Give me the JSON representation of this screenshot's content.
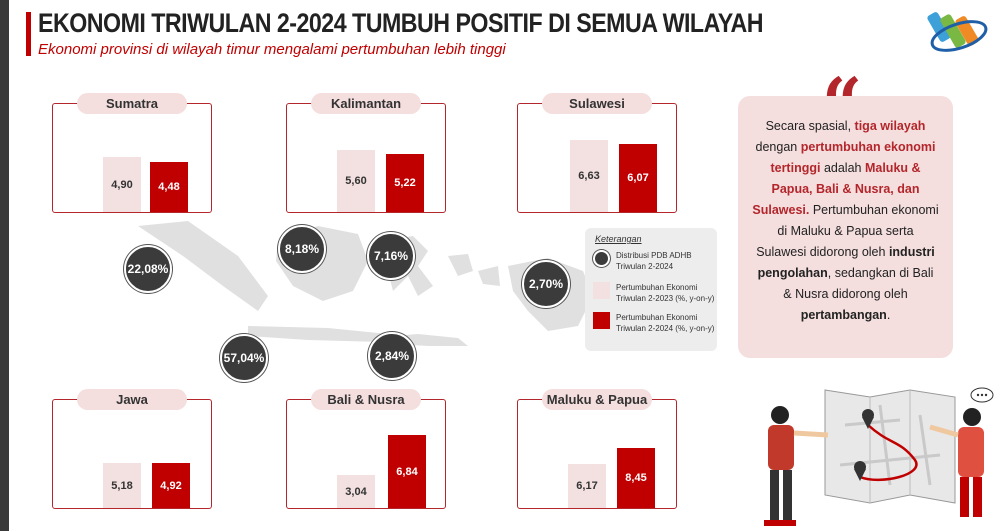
{
  "header": {
    "title": "EKONOMI TRIWULAN 2-2024 TUMBUH POSITIF DI SEMUA WILAYAH",
    "subtitle": "Ekonomi provinsi di wilayah timur mengalami pertumbuhan lebih tinggi"
  },
  "colors": {
    "accent": "#c00000",
    "light": "#f3e0e0",
    "bubble": "#3b3b3b"
  },
  "regions": {
    "sumatra": {
      "label": "Sumatra",
      "growth_2023": "4,90",
      "growth_2024": "4,48",
      "pdb_share": "22,08%"
    },
    "kalimantan": {
      "label": "Kalimantan",
      "growth_2023": "5,60",
      "growth_2024": "5,22",
      "pdb_share": "8,18%"
    },
    "sulawesi": {
      "label": "Sulawesi",
      "growth_2023": "6,63",
      "growth_2024": "6,07",
      "pdb_share": "7,16%"
    },
    "jawa": {
      "label": "Jawa",
      "growth_2023": "5,18",
      "growth_2024": "4,92",
      "pdb_share": "57,04%"
    },
    "bali_nusra": {
      "label": "Bali & Nusra",
      "growth_2023": "3,04",
      "growth_2024": "6,84",
      "pdb_share": "2,84%"
    },
    "maluku_papua": {
      "label": "Maluku & Papua",
      "growth_2023": "6,17",
      "growth_2024": "8,45",
      "pdb_share": "2,70%"
    }
  },
  "legend": {
    "title": "Keterangan",
    "pdb": "Distribusi PDB ADHB Triwulan 2-2024",
    "growth_2023": "Pertumbuhan Ekonomi Triwulan 2-2023 (%, y-on-y)",
    "growth_2024": "Pertumbuhan Ekonomi Triwulan 2-2024 (%, y-on-y)"
  },
  "info": {
    "p1": "Secara spasial,",
    "p2": "tiga wilayah",
    "p3": "dengan",
    "p4": "pertumbuhan ekonomi tertinggi",
    "p5": "adalah",
    "p6": "Maluku & Papua, Bali & Nusra, dan Sulawesi.",
    "p7": "Pertumbuhan ekonomi di Maluku & Papua serta Sulawesi didorong oleh",
    "p8": "industri pengolahan",
    "p9": ", sedangkan di Bali & Nusra didorong oleh",
    "p10": "pertambangan",
    "p11": "."
  },
  "icons": {
    "quote": "quote-icon",
    "logo": "bps-logo-icon",
    "illustration": "map-people-illustration"
  }
}
